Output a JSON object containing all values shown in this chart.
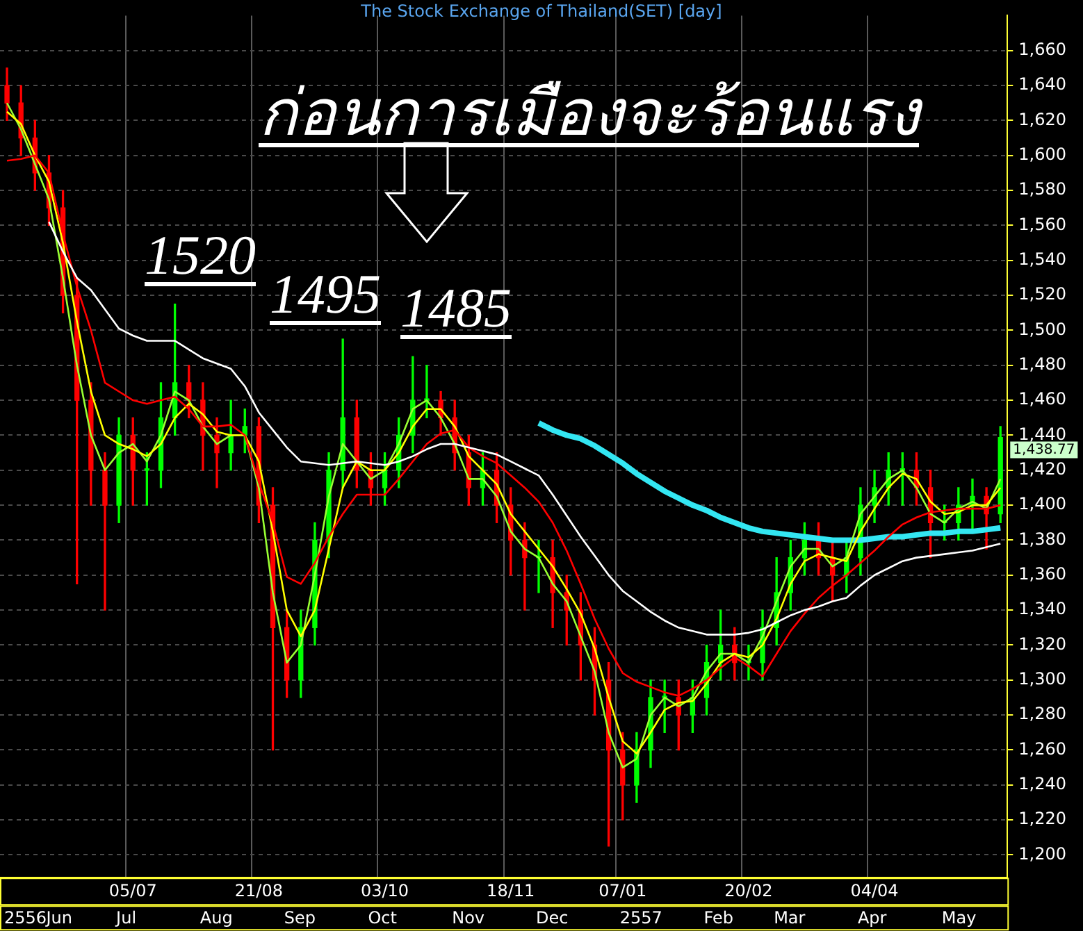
{
  "chart_data": {
    "type": "candlestick",
    "title": "The Stock Exchange of Thailand(SET) [day]",
    "annotations": [
      "ก่อนการเมืองจะร้อนแรง",
      "1520",
      "1495",
      "1485",
      "1,438.77",
      "2556",
      "Jun",
      "Jul",
      "Aug",
      "Sep",
      "Oct",
      "Nov",
      "Dec",
      "2557",
      "Feb",
      "Mar",
      "Apr",
      "May"
    ],
    "categories": [
      null,
      null,
      null,
      null,
      null,
      null,
      null,
      null,
      null,
      "05/07",
      null,
      null,
      null,
      null,
      null,
      null,
      null,
      null,
      "21/08",
      null,
      null,
      null,
      null,
      null,
      null,
      null,
      null,
      "03/10",
      null,
      null,
      null,
      null,
      null,
      null,
      null,
      null,
      "18/11",
      null,
      null,
      null,
      null,
      null,
      null,
      null,
      "07/01",
      null,
      null,
      null,
      null,
      null,
      null,
      null,
      null,
      "20/02",
      null,
      null,
      null,
      null,
      null,
      null,
      null,
      null,
      "04/04",
      null,
      null,
      null,
      null,
      null,
      null,
      null,
      null,
      null
    ],
    "ohlc": [
      [
        1640,
        1650,
        1620,
        1630
      ],
      [
        1630,
        1640,
        1600,
        1610
      ],
      [
        1610,
        1620,
        1580,
        1590
      ],
      [
        1590,
        1600,
        1560,
        1570
      ],
      [
        1570,
        1580,
        1510,
        1520
      ],
      [
        1520,
        1530,
        1355,
        1460
      ],
      [
        1460,
        1470,
        1400,
        1420
      ],
      [
        1420,
        1430,
        1340,
        1400
      ],
      [
        1400,
        1450,
        1390,
        1440
      ],
      [
        1440,
        1450,
        1400,
        1420
      ],
      [
        1420,
        1430,
        1400,
        1420
      ],
      [
        1420,
        1470,
        1410,
        1450
      ],
      [
        1450,
        1515,
        1440,
        1470
      ],
      [
        1470,
        1480,
        1450,
        1460
      ],
      [
        1460,
        1470,
        1420,
        1440
      ],
      [
        1440,
        1450,
        1410,
        1430
      ],
      [
        1430,
        1460,
        1420,
        1440
      ],
      [
        1440,
        1455,
        1430,
        1445
      ],
      [
        1445,
        1450,
        1390,
        1400
      ],
      [
        1400,
        1410,
        1260,
        1330
      ],
      [
        1330,
        1340,
        1290,
        1300
      ],
      [
        1300,
        1340,
        1290,
        1330
      ],
      [
        1330,
        1390,
        1320,
        1380
      ],
      [
        1380,
        1430,
        1370,
        1420
      ],
      [
        1420,
        1495,
        1410,
        1450
      ],
      [
        1450,
        1460,
        1410,
        1420
      ],
      [
        1420,
        1430,
        1400,
        1410
      ],
      [
        1410,
        1430,
        1400,
        1420
      ],
      [
        1420,
        1450,
        1410,
        1440
      ],
      [
        1440,
        1485,
        1430,
        1460
      ],
      [
        1460,
        1480,
        1450,
        1460
      ],
      [
        1460,
        1465,
        1440,
        1450
      ],
      [
        1450,
        1460,
        1420,
        1430
      ],
      [
        1430,
        1440,
        1400,
        1410
      ],
      [
        1410,
        1430,
        1400,
        1420
      ],
      [
        1420,
        1430,
        1390,
        1400
      ],
      [
        1400,
        1410,
        1360,
        1380
      ],
      [
        1380,
        1390,
        1340,
        1370
      ],
      [
        1370,
        1380,
        1350,
        1370
      ],
      [
        1370,
        1380,
        1330,
        1350
      ],
      [
        1350,
        1360,
        1320,
        1340
      ],
      [
        1340,
        1350,
        1300,
        1320
      ],
      [
        1320,
        1330,
        1280,
        1300
      ],
      [
        1300,
        1310,
        1205,
        1260
      ],
      [
        1260,
        1270,
        1220,
        1240
      ],
      [
        1240,
        1270,
        1230,
        1260
      ],
      [
        1260,
        1300,
        1250,
        1290
      ],
      [
        1290,
        1300,
        1270,
        1290
      ],
      [
        1290,
        1300,
        1260,
        1280
      ],
      [
        1280,
        1300,
        1270,
        1290
      ],
      [
        1290,
        1320,
        1280,
        1310
      ],
      [
        1310,
        1340,
        1300,
        1320
      ],
      [
        1320,
        1330,
        1300,
        1310
      ],
      [
        1310,
        1320,
        1300,
        1310
      ],
      [
        1310,
        1340,
        1300,
        1330
      ],
      [
        1330,
        1370,
        1320,
        1350
      ],
      [
        1350,
        1380,
        1340,
        1370
      ],
      [
        1370,
        1390,
        1360,
        1380
      ],
      [
        1380,
        1390,
        1360,
        1370
      ],
      [
        1370,
        1380,
        1345,
        1360
      ],
      [
        1360,
        1380,
        1350,
        1370
      ],
      [
        1370,
        1410,
        1360,
        1400
      ],
      [
        1400,
        1420,
        1390,
        1410
      ],
      [
        1410,
        1430,
        1400,
        1420
      ],
      [
        1420,
        1430,
        1400,
        1420
      ],
      [
        1420,
        1430,
        1400,
        1410
      ],
      [
        1410,
        1420,
        1370,
        1390
      ],
      [
        1390,
        1400,
        1380,
        1390
      ],
      [
        1390,
        1410,
        1380,
        1400
      ],
      [
        1400,
        1415,
        1385,
        1405
      ],
      [
        1405,
        1410,
        1375,
        1395
      ],
      [
        1395,
        1445,
        1390,
        1438.77
      ]
    ],
    "colors": [
      "#ff0000",
      "#ff0000",
      "#ff0000",
      "#ff0000",
      "#ff0000",
      "#ff0000",
      "#ff0000",
      "#ff0000",
      "#00ff00",
      "#ff0000",
      "#00ff00",
      "#00ff00",
      "#00ff00",
      "#ff0000",
      "#ff0000",
      "#ff0000",
      "#00ff00",
      "#00ff00",
      "#ff0000",
      "#ff0000",
      "#ff0000",
      "#00ff00",
      "#00ff00",
      "#00ff00",
      "#00ff00",
      "#ff0000",
      "#ff0000",
      "#00ff00",
      "#00ff00",
      "#00ff00",
      "#00ff00",
      "#ff0000",
      "#ff0000",
      "#ff0000",
      "#00ff00",
      "#ff0000",
      "#ff0000",
      "#ff0000",
      "#00ff00",
      "#ff0000",
      "#ff0000",
      "#ff0000",
      "#ff0000",
      "#ff0000",
      "#ff0000",
      "#00ff00",
      "#00ff00",
      "#00ff00",
      "#ff0000",
      "#00ff00",
      "#00ff00",
      "#00ff00",
      "#ff0000",
      "#00ff00",
      "#00ff00",
      "#00ff00",
      "#00ff00",
      "#00ff00",
      "#ff0000",
      "#ff0000",
      "#00ff00",
      "#00ff00",
      "#00ff00",
      "#00ff00",
      "#00ff00",
      "#ff0000",
      "#ff0000",
      "#00ff00",
      "#00ff00",
      "#00ff00",
      "#ff0000",
      "#00ff00"
    ],
    "series": [
      {
        "type": "line",
        "color": "#ffffff",
        "values": [
          null,
          null,
          null,
          1562,
          1545,
          1530,
          1523,
          1512,
          1501,
          1497,
          1494,
          1494,
          1494,
          1489,
          1484,
          1481,
          1478,
          1468,
          1453,
          1443,
          1433,
          1425,
          1424,
          1423,
          1424,
          1425,
          1424,
          1423,
          1425,
          1428,
          1432,
          1435,
          1435,
          1433,
          1431,
          1429,
          1425,
          1421,
          1417,
          1406,
          1394,
          1382,
          1371,
          1360,
          1351,
          1345,
          1339,
          1334,
          1330,
          1328,
          1326,
          1326,
          1326,
          1327,
          1329,
          1333,
          1337,
          1340,
          1342,
          1345,
          1347,
          1354,
          1360,
          1364,
          1368,
          1370,
          1371,
          1372,
          1373,
          1374,
          1376,
          1378
        ]
      },
      {
        "type": "line",
        "color": "#ff0000",
        "values": [
          1597,
          1598,
          1600,
          1590,
          1555,
          1525,
          1500,
          1470,
          1465,
          1460,
          1458,
          1460,
          1462,
          1455,
          1445,
          1445,
          1446,
          1440,
          1413,
          1390,
          1359,
          1355,
          1367,
          1382,
          1395,
          1406,
          1406,
          1406,
          1415,
          1425,
          1435,
          1441,
          1443,
          1433,
          1428,
          1424,
          1417,
          1410,
          1402,
          1390,
          1374,
          1355,
          1335,
          1318,
          1304,
          1299,
          1296,
          1293,
          1291,
          1295,
          1300,
          1307,
          1313,
          1308,
          1302,
          1315,
          1328,
          1338,
          1347,
          1354,
          1360,
          1367,
          1374,
          1382,
          1389,
          1393,
          1396,
          1397,
          1398,
          1398,
          1398,
          1400
        ]
      },
      {
        "type": "line",
        "color": "#ffff00",
        "values": [
          1625,
          1618,
          1600,
          1585,
          1550,
          1505,
          1465,
          1440,
          1435,
          1432,
          1428,
          1435,
          1450,
          1458,
          1452,
          1442,
          1440,
          1440,
          1425,
          1385,
          1340,
          1325,
          1340,
          1375,
          1410,
          1425,
          1420,
          1420,
          1430,
          1445,
          1455,
          1455,
          1445,
          1428,
          1420,
          1412,
          1395,
          1385,
          1375,
          1365,
          1352,
          1338,
          1318,
          1290,
          1265,
          1258,
          1270,
          1283,
          1287,
          1288,
          1298,
          1310,
          1315,
          1313,
          1320,
          1335,
          1355,
          1368,
          1372,
          1370,
          1368,
          1385,
          1398,
          1410,
          1418,
          1415,
          1402,
          1395,
          1396,
          1400,
          1400,
          1410
        ]
      },
      {
        "type": "line",
        "color": "#99ff33",
        "values": [
          1630,
          1615,
          1595,
          1575,
          1530,
          1480,
          1440,
          1420,
          1430,
          1435,
          1425,
          1440,
          1465,
          1460,
          1445,
          1435,
          1440,
          1440,
          1410,
          1350,
          1310,
          1320,
          1360,
          1405,
          1435,
          1425,
          1415,
          1420,
          1435,
          1455,
          1460,
          1450,
          1435,
          1415,
          1415,
          1405,
          1385,
          1375,
          1370,
          1355,
          1345,
          1325,
          1305,
          1270,
          1250,
          1255,
          1280,
          1290,
          1285,
          1290,
          1305,
          1315,
          1315,
          1310,
          1325,
          1345,
          1365,
          1375,
          1375,
          1365,
          1370,
          1395,
          1405,
          1415,
          1420,
          1410,
          1395,
          1390,
          1398,
          1402,
          1398,
          1415
        ]
      },
      {
        "type": "line",
        "color": "#33e6f2",
        "values": [
          null,
          null,
          null,
          null,
          null,
          null,
          null,
          null,
          null,
          null,
          null,
          null,
          null,
          null,
          null,
          null,
          null,
          null,
          null,
          null,
          null,
          null,
          null,
          null,
          null,
          null,
          null,
          null,
          null,
          null,
          null,
          null,
          null,
          null,
          null,
          null,
          null,
          null,
          1447,
          1443,
          1440,
          1438,
          1434,
          1429,
          1424,
          1418,
          1413,
          1408,
          1404,
          1400,
          1397,
          1393,
          1390,
          1387,
          1385,
          1384,
          1383,
          1382,
          1381,
          1380,
          1380,
          1380,
          1381,
          1382,
          1382,
          1383,
          1384,
          1384,
          1385,
          1385,
          1386,
          1387
        ]
      }
    ],
    "ylim": [
      1187,
      1680
    ],
    "yticks": [
      {
        "value": 1200,
        "label": "1,200"
      },
      {
        "value": 1220,
        "label": "1,220"
      },
      {
        "value": 1240,
        "label": "1,240"
      },
      {
        "value": 1260,
        "label": "1,260"
      },
      {
        "value": 1280,
        "label": "1,280"
      },
      {
        "value": 1300,
        "label": "1,300"
      },
      {
        "value": 1320,
        "label": "1,320"
      },
      {
        "value": 1340,
        "label": "1,340"
      },
      {
        "value": 1360,
        "label": "1,360"
      },
      {
        "value": 1380,
        "label": "1,380"
      },
      {
        "value": 1400,
        "label": "1,400"
      },
      {
        "value": 1420,
        "label": "1,420"
      },
      {
        "value": 1440,
        "label": "1,440"
      },
      {
        "value": 1460,
        "label": "1,460"
      },
      {
        "value": 1480,
        "label": "1,480"
      },
      {
        "value": 1500,
        "label": "1,500"
      },
      {
        "value": 1520,
        "label": "1,520"
      },
      {
        "value": 1540,
        "label": "1,540"
      },
      {
        "value": 1560,
        "label": "1,560"
      },
      {
        "value": 1580,
        "label": "1,580"
      },
      {
        "value": 1600,
        "label": "1,600"
      },
      {
        "value": 1620,
        "label": "1,620"
      },
      {
        "value": 1640,
        "label": "1,640"
      },
      {
        "value": 1660,
        "label": "1,660"
      }
    ],
    "grid": true,
    "legend": false,
    "marker": "none"
  }
}
